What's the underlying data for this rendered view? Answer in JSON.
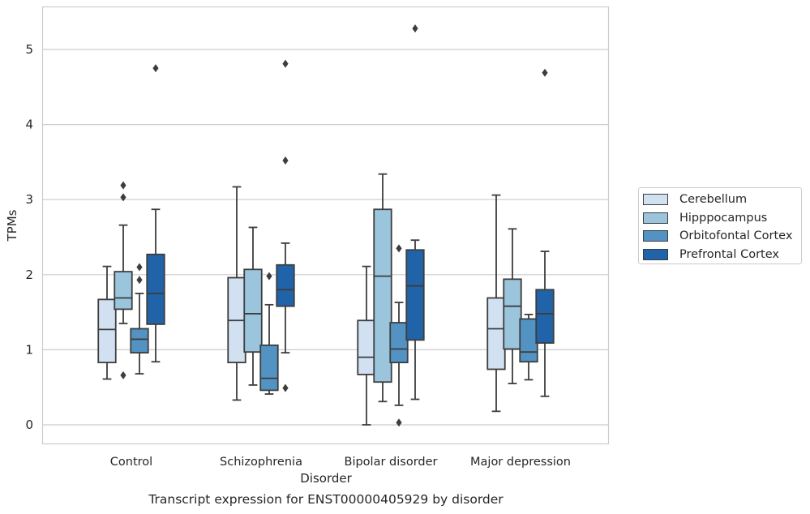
{
  "chart_data": {
    "type": "box",
    "title": "Transcript expression for ENST00000405929 by disorder",
    "xlabel": "Disorder",
    "ylabel": "TPMs",
    "ylim": [
      -0.25,
      5.55
    ],
    "yticks": [
      0,
      1,
      2,
      3,
      4,
      5
    ],
    "grid": "horizontal",
    "legend_position": "outside-right",
    "categories": [
      "Control",
      "Schizophrenia",
      "Bipolar disorder",
      "Major depression"
    ],
    "series": [
      {
        "name": "Cerebellum",
        "color": "#d1e1f1",
        "boxes": [
          {
            "whislo": 0.61,
            "q1": 0.83,
            "med": 1.27,
            "q3": 1.67,
            "whishi": 2.11,
            "fliers": []
          },
          {
            "whislo": 0.33,
            "q1": 0.83,
            "med": 1.39,
            "q3": 1.96,
            "whishi": 3.17,
            "fliers": []
          },
          {
            "whislo": 0.0,
            "q1": 0.67,
            "med": 0.9,
            "q3": 1.39,
            "whishi": 2.11,
            "fliers": []
          },
          {
            "whislo": 0.18,
            "q1": 0.74,
            "med": 1.28,
            "q3": 1.69,
            "whishi": 3.06,
            "fliers": []
          }
        ]
      },
      {
        "name": "Hipppocampus",
        "color": "#9ac5dd",
        "boxes": [
          {
            "whislo": 1.35,
            "q1": 1.54,
            "med": 1.69,
            "q3": 2.04,
            "whishi": 2.66,
            "fliers": [
              0.66,
              3.03,
              3.19
            ]
          },
          {
            "whislo": 0.53,
            "q1": 0.97,
            "med": 1.48,
            "q3": 2.07,
            "whishi": 2.63,
            "fliers": []
          },
          {
            "whislo": 0.31,
            "q1": 0.57,
            "med": 1.98,
            "q3": 2.87,
            "whishi": 3.34,
            "fliers": []
          },
          {
            "whislo": 0.55,
            "q1": 1.01,
            "med": 1.58,
            "q3": 1.94,
            "whishi": 2.61,
            "fliers": []
          }
        ]
      },
      {
        "name": "Orbitofontal Cortex",
        "color": "#5393c3",
        "boxes": [
          {
            "whislo": 0.68,
            "q1": 0.96,
            "med": 1.14,
            "q3": 1.28,
            "whishi": 1.75,
            "fliers": [
              1.93,
              2.1
            ]
          },
          {
            "whislo": 0.41,
            "q1": 0.46,
            "med": 0.62,
            "q3": 1.06,
            "whishi": 1.6,
            "fliers": [
              1.98
            ]
          },
          {
            "whislo": 0.26,
            "q1": 0.83,
            "med": 1.01,
            "q3": 1.36,
            "whishi": 1.63,
            "fliers": [
              0.03,
              2.35
            ]
          },
          {
            "whislo": 0.6,
            "q1": 0.84,
            "med": 0.97,
            "q3": 1.41,
            "whishi": 1.47,
            "fliers": []
          }
        ]
      },
      {
        "name": "Prefrontal Cortex",
        "color": "#2163a8",
        "boxes": [
          {
            "whislo": 0.84,
            "q1": 1.34,
            "med": 1.75,
            "q3": 2.27,
            "whishi": 2.87,
            "fliers": [
              4.75
            ]
          },
          {
            "whislo": 0.96,
            "q1": 1.58,
            "med": 1.8,
            "q3": 2.13,
            "whishi": 2.42,
            "fliers": [
              0.49,
              3.52,
              4.81
            ]
          },
          {
            "whislo": 0.34,
            "q1": 1.13,
            "med": 1.85,
            "q3": 2.33,
            "whishi": 2.46,
            "fliers": [
              5.28
            ]
          },
          {
            "whislo": 0.38,
            "q1": 1.09,
            "med": 1.48,
            "q3": 1.8,
            "whishi": 2.31,
            "fliers": [
              4.69
            ]
          }
        ]
      }
    ]
  }
}
